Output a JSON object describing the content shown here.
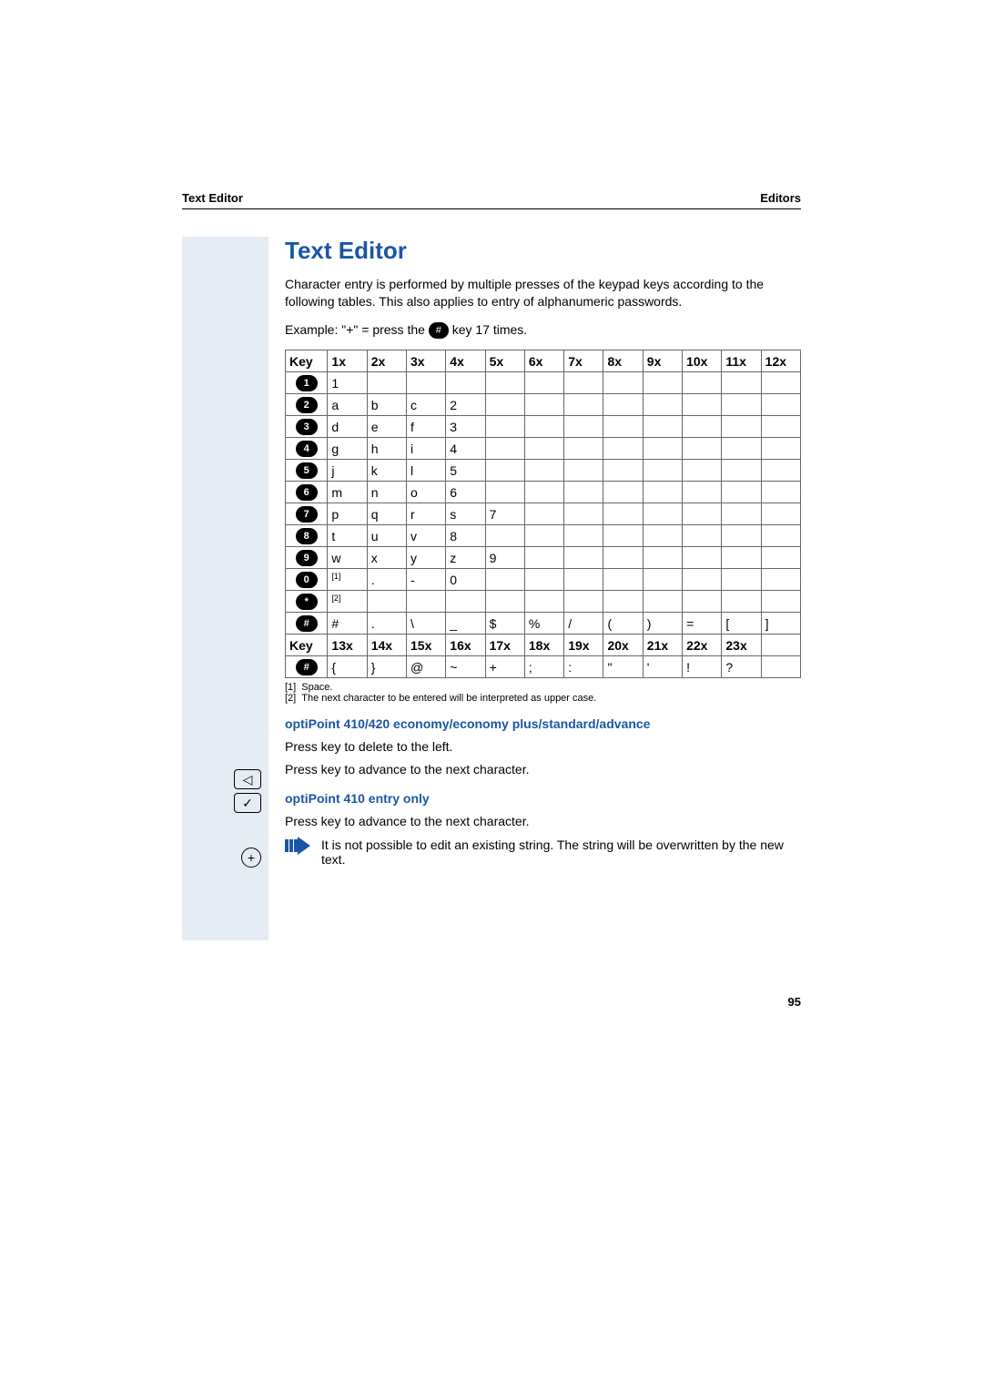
{
  "header": {
    "left": "Text Editor",
    "right": "Editors"
  },
  "title": "Text Editor",
  "intro": "Character entry is performed by multiple presses of the keypad keys according to the following tables. This also applies to entry of alphanumeric passwords.",
  "example_prefix": "Example: \"+\" = press the ",
  "example_suffix": " key 17 times.",
  "hash_label": "#",
  "table": {
    "header1": [
      "Key",
      "1x",
      "2x",
      "3x",
      "4x",
      "5x",
      "6x",
      "7x",
      "8x",
      "9x",
      "10x",
      "11x",
      "12x"
    ],
    "rows1": [
      {
        "key": "1",
        "cells": [
          "1",
          "",
          "",
          "",
          "",
          "",
          "",
          "",
          "",
          "",
          "",
          ""
        ]
      },
      {
        "key": "2",
        "cells": [
          "a",
          "b",
          "c",
          "2",
          "",
          "",
          "",
          "",
          "",
          "",
          "",
          ""
        ]
      },
      {
        "key": "3",
        "cells": [
          "d",
          "e",
          "f",
          "3",
          "",
          "",
          "",
          "",
          "",
          "",
          "",
          ""
        ]
      },
      {
        "key": "4",
        "cells": [
          "g",
          "h",
          "i",
          "4",
          "",
          "",
          "",
          "",
          "",
          "",
          "",
          ""
        ]
      },
      {
        "key": "5",
        "cells": [
          "j",
          "k",
          "l",
          "5",
          "",
          "",
          "",
          "",
          "",
          "",
          "",
          ""
        ]
      },
      {
        "key": "6",
        "cells": [
          "m",
          "n",
          "o",
          "6",
          "",
          "",
          "",
          "",
          "",
          "",
          "",
          ""
        ]
      },
      {
        "key": "7",
        "cells": [
          "p",
          "q",
          "r",
          "s",
          "7",
          "",
          "",
          "",
          "",
          "",
          "",
          ""
        ]
      },
      {
        "key": "8",
        "cells": [
          "t",
          "u",
          "v",
          "8",
          "",
          "",
          "",
          "",
          "",
          "",
          "",
          ""
        ]
      },
      {
        "key": "9",
        "cells": [
          "w",
          "x",
          "y",
          "z",
          "9",
          "",
          "",
          "",
          "",
          "",
          "",
          ""
        ]
      },
      {
        "key": "0",
        "cells": [
          "[[1]]",
          ".",
          "-",
          "0",
          "",
          "",
          "",
          "",
          "",
          "",
          "",
          ""
        ]
      },
      {
        "key": "*",
        "cells": [
          "[[2]]",
          "",
          "",
          "",
          "",
          "",
          "",
          "",
          "",
          "",
          "",
          ""
        ]
      },
      {
        "key": "#",
        "cells": [
          "#",
          ".",
          "\\",
          "_",
          "$",
          "%",
          "/",
          "(",
          ")",
          "=",
          "[",
          "]"
        ]
      }
    ],
    "header2": [
      "Key",
      "13x",
      "14x",
      "15x",
      "16x",
      "17x",
      "18x",
      "19x",
      "20x",
      "21x",
      "22x",
      "23x",
      ""
    ],
    "rows2": [
      {
        "key": "#",
        "cells": [
          "{",
          "}",
          "@",
          "~",
          "+",
          ";",
          ":",
          "\"",
          "'",
          "!",
          "?",
          ""
        ]
      }
    ]
  },
  "footnotes": {
    "f1_label": "[1]",
    "f1_text": "Space.",
    "f2_label": "[2]",
    "f2_text": "The next character to be entered will be interpreted as upper case."
  },
  "section1_title": "optiPoint 410/420 economy/economy plus/standard/advance",
  "line_delete": "Press key to delete to the left.",
  "line_next1": "Press key to advance to the next character.",
  "section2_title": "optiPoint 410 entry only",
  "line_next2": "Press key to advance to the next character.",
  "note_text": "It is not possible to edit an existing string. The string will be overwritten by the new text.",
  "icons": {
    "backspace_glyph": "◁",
    "check_glyph": "✓",
    "plus_glyph": "+"
  },
  "page_number": "95",
  "colors": {
    "accent": "#1a56a6",
    "sidebar_bg": "#e6ecf4",
    "border": "#666666",
    "text": "#000000"
  },
  "font_family": "Arial, Helvetica, sans-serif"
}
